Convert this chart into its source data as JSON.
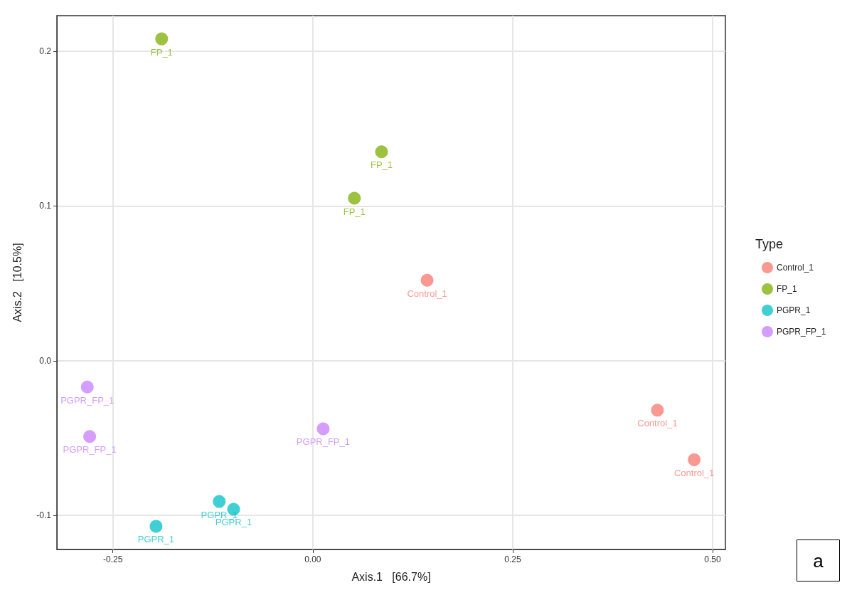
{
  "chart_data": {
    "type": "scatter",
    "xlabel": "Axis.1   [66.7%]",
    "ylabel": "Axis.2   [10.5%]",
    "legend_title": "Type",
    "legend": "right",
    "grid": true,
    "marker": "circle",
    "xlim": [
      -0.32,
      0.516
    ],
    "xticks": [
      {
        "value": -0.25,
        "label": "-0.25"
      },
      {
        "value": 0,
        "label": "0.00"
      },
      {
        "value": 0.25,
        "label": "0.25"
      },
      {
        "value": 0.5,
        "label": "0.50"
      }
    ],
    "ylim": [
      -0.122,
      0.223
    ],
    "yticks": [
      {
        "value": -0.1,
        "label": "-0.1"
      },
      {
        "value": 0,
        "label": "0.0"
      },
      0.1,
      0.2
    ],
    "series": [
      {
        "name": "Control_1",
        "color": "#f8766d",
        "x": [
          0.143,
          0.431,
          0.477
        ],
        "values": [
          0.052,
          -0.032,
          -0.064
        ]
      },
      {
        "name": "FP_1",
        "color": "#7cae00",
        "x": [
          -0.189,
          0.086,
          0.052
        ],
        "values": [
          0.208,
          0.135,
          0.105
        ]
      },
      {
        "name": "PGPR_1",
        "color": "#00bfc4",
        "x": [
          -0.196,
          -0.117,
          -0.099
        ],
        "values": [
          -0.107,
          -0.091,
          -0.096
        ]
      },
      {
        "name": "PGPR_FP_1",
        "color": "#c77cff",
        "x": [
          -0.282,
          -0.279,
          0.013
        ],
        "values": [
          -0.017,
          -0.049,
          -0.044
        ]
      }
    ],
    "annotations": [
      "a"
    ]
  }
}
